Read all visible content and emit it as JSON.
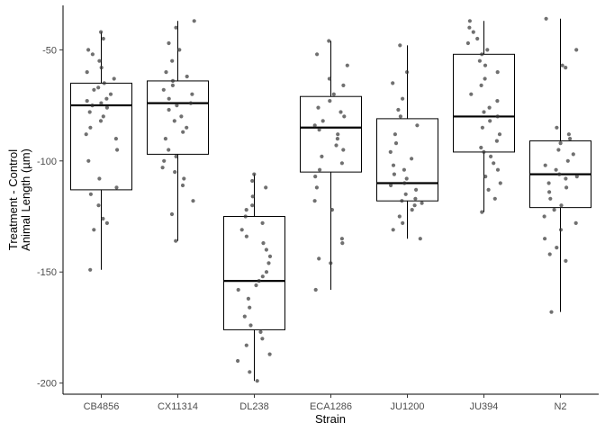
{
  "chart_data": {
    "type": "boxplot",
    "title": "",
    "xlabel": "Strain",
    "ylabel_lines": [
      "Treatment - Control",
      "Animal Length (µm)"
    ],
    "ylim": [
      -205,
      -30
    ],
    "yticks": [
      -50,
      -100,
      -150,
      -200
    ],
    "ytick_labels": [
      "-50",
      "-100",
      "-150",
      "-200"
    ],
    "grid": false,
    "categories": [
      "CB4856",
      "CX11314",
      "DL238",
      "ECA1286",
      "JU1200",
      "JU394",
      "N2"
    ],
    "boxes": [
      {
        "strain": "CB4856",
        "min": -149,
        "q1": -113,
        "median": -75,
        "q3": -65,
        "max": -42
      },
      {
        "strain": "CX11314",
        "min": -136,
        "q1": -97,
        "median": -74,
        "q3": -64,
        "max": -37
      },
      {
        "strain": "DL238",
        "min": -199,
        "q1": -176,
        "median": -154,
        "q3": -125,
        "max": -106
      },
      {
        "strain": "ECA1286",
        "min": -158,
        "q1": -105,
        "median": -85,
        "q3": -71,
        "max": -46
      },
      {
        "strain": "JU1200",
        "min": -135,
        "q1": -118,
        "median": -110,
        "q3": -81,
        "max": -48
      },
      {
        "strain": "JU394",
        "min": -123,
        "q1": -96,
        "median": -80,
        "q3": -52,
        "max": -37
      },
      {
        "strain": "N2",
        "min": -168,
        "q1": -121,
        "median": -106,
        "q3": -91,
        "max": -36
      }
    ],
    "points": [
      {
        "strain": "CB4856",
        "values": [
          -42,
          -45,
          -50,
          -52,
          -55,
          -58,
          -60,
          -63,
          -65,
          -67,
          -68,
          -70,
          -72,
          -73,
          -74,
          -75,
          -76,
          -78,
          -80,
          -82,
          -85,
          -88,
          -90,
          -95,
          -100,
          -108,
          -112,
          -115,
          -120,
          -126,
          -128,
          -131,
          -149
        ]
      },
      {
        "strain": "CX11314",
        "values": [
          -37,
          -40,
          -47,
          -50,
          -55,
          -60,
          -62,
          -64,
          -66,
          -68,
          -70,
          -72,
          -74,
          -75,
          -77,
          -80,
          -82,
          -85,
          -87,
          -90,
          -95,
          -98,
          -100,
          -103,
          -105,
          -108,
          -111,
          -118,
          -124,
          -136
        ]
      },
      {
        "strain": "DL238",
        "values": [
          -106,
          -109,
          -112,
          -116,
          -120,
          -122,
          -125,
          -128,
          -131,
          -134,
          -137,
          -140,
          -143,
          -146,
          -150,
          -152,
          -154,
          -156,
          -158,
          -162,
          -166,
          -170,
          -174,
          -177,
          -180,
          -183,
          -187,
          -190,
          -195,
          -199
        ]
      },
      {
        "strain": "ECA1286",
        "values": [
          -46,
          -52,
          -57,
          -63,
          -66,
          -70,
          -73,
          -76,
          -78,
          -80,
          -82,
          -84,
          -86,
          -88,
          -90,
          -93,
          -95,
          -98,
          -101,
          -104,
          -107,
          -112,
          -118,
          -122,
          -135,
          -137,
          -144,
          -146,
          -158
        ]
      },
      {
        "strain": "JU1200",
        "values": [
          -48,
          -60,
          -65,
          -72,
          -77,
          -80,
          -84,
          -88,
          -92,
          -96,
          -99,
          -102,
          -104,
          -106,
          -108,
          -110,
          -111,
          -113,
          -115,
          -117,
          -118,
          -119,
          -120,
          -122,
          -125,
          -128,
          -131,
          -135
        ]
      },
      {
        "strain": "JU394",
        "values": [
          -37,
          -40,
          -42,
          -45,
          -47,
          -50,
          -52,
          -55,
          -57,
          -60,
          -63,
          -66,
          -70,
          -73,
          -76,
          -78,
          -80,
          -82,
          -85,
          -88,
          -91,
          -94,
          -96,
          -98,
          -101,
          -104,
          -107,
          -110,
          -113,
          -117,
          -123
        ]
      },
      {
        "strain": "N2",
        "values": [
          -36,
          -50,
          -57,
          -58,
          -85,
          -88,
          -90,
          -92,
          -95,
          -97,
          -100,
          -102,
          -104,
          -106,
          -107,
          -108,
          -110,
          -112,
          -114,
          -117,
          -120,
          -122,
          -125,
          -128,
          -131,
          -135,
          -139,
          -142,
          -145,
          -168
        ]
      }
    ],
    "colors": {
      "box_stroke": "#000000",
      "median": "#000000",
      "point_fill": "#333333",
      "tick_label": "#4d4d4d"
    }
  }
}
